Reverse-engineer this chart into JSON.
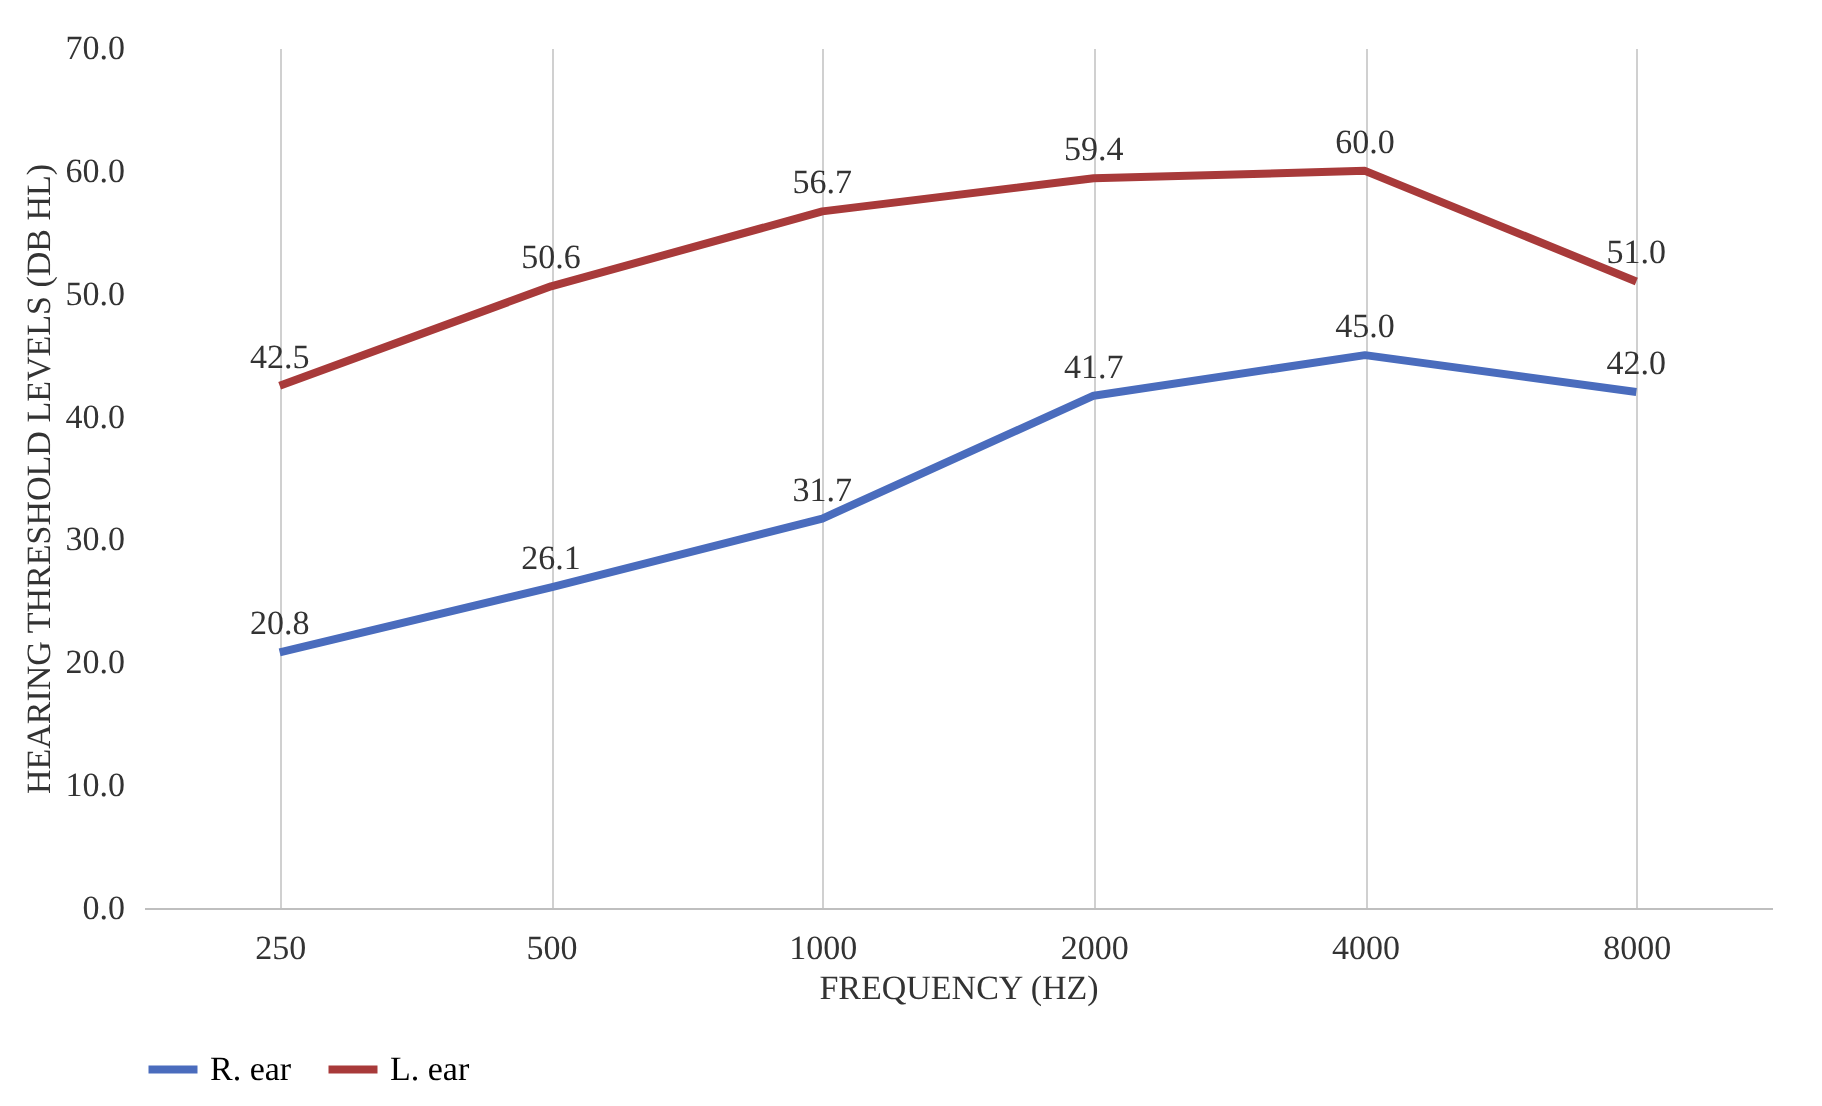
{
  "chart_data": {
    "type": "line",
    "xlabel": "FREQUENCY (HZ)",
    "ylabel": "HEARING THRESHOLD LEVELS (DB HL)",
    "categories": [
      "250",
      "500",
      "1000",
      "2000",
      "4000",
      "8000"
    ],
    "series": [
      {
        "name": "R. ear",
        "color": "#4a6cbd",
        "values": [
          20.8,
          26.1,
          31.7,
          41.7,
          45.0,
          42.0
        ],
        "value_labels": [
          "20.8",
          "26.1",
          "31.7",
          "41.7",
          "45.0",
          "42.0"
        ]
      },
      {
        "name": "L. ear",
        "color": "#a83a3a",
        "values": [
          42.5,
          50.6,
          56.7,
          59.4,
          60.0,
          51.0
        ],
        "value_labels": [
          "42.5",
          "50.6",
          "56.7",
          "59.4",
          "60.0",
          "51.0"
        ]
      }
    ],
    "ylim": [
      0,
      70
    ],
    "yticks": [
      {
        "value": 0,
        "label": "0.0"
      },
      {
        "value": 10,
        "label": "10.0"
      },
      {
        "value": 20,
        "label": "20.0"
      },
      {
        "value": 30,
        "label": "30.0"
      },
      {
        "value": 40,
        "label": "40.0"
      },
      {
        "value": 50,
        "label": "50.0"
      },
      {
        "value": 60,
        "label": "60.0"
      },
      {
        "value": 70,
        "label": "70.0"
      }
    ],
    "grid": "x",
    "legend": "bottom",
    "marker": "none",
    "line_style": "solid"
  }
}
